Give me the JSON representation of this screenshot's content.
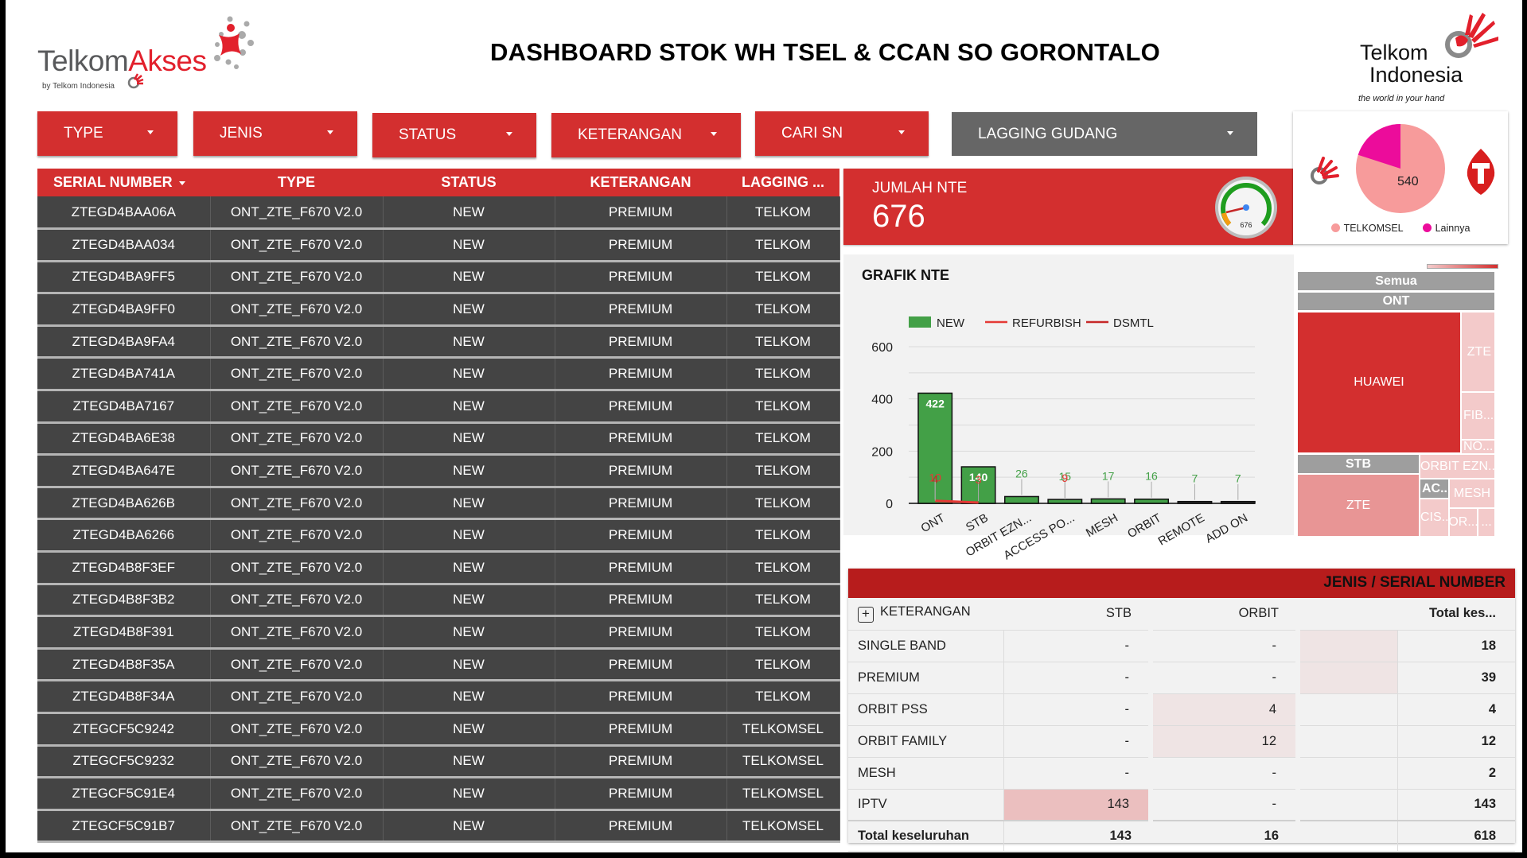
{
  "header": {
    "title": "DASHBOARD STOK WH TSEL & CCAN SO GORONTALO",
    "logo_left": {
      "part1": "Telkom",
      "part2": "Akses",
      "byline": "by Telkom Indonesia"
    },
    "logo_right": {
      "line1": "Telkom",
      "line2": "Indonesia",
      "tagline": "the world in your hand"
    }
  },
  "filters": [
    {
      "label": "TYPE"
    },
    {
      "label": "JENIS"
    },
    {
      "label": "STATUS"
    },
    {
      "label": "KETERANGAN"
    },
    {
      "label": "CARI SN"
    },
    {
      "label": "LAGGING GUDANG"
    }
  ],
  "table": {
    "columns": [
      "SERIAL NUMBER",
      "TYPE",
      "STATUS",
      "KETERANGAN",
      "LAGGING ..."
    ],
    "rows": [
      [
        "ZTEGD4BAA06A",
        "ONT_ZTE_F670 V2.0",
        "NEW",
        "PREMIUM",
        "TELKOM"
      ],
      [
        "ZTEGD4BAA034",
        "ONT_ZTE_F670 V2.0",
        "NEW",
        "PREMIUM",
        "TELKOM"
      ],
      [
        "ZTEGD4BA9FF5",
        "ONT_ZTE_F670 V2.0",
        "NEW",
        "PREMIUM",
        "TELKOM"
      ],
      [
        "ZTEGD4BA9FF0",
        "ONT_ZTE_F670 V2.0",
        "NEW",
        "PREMIUM",
        "TELKOM"
      ],
      [
        "ZTEGD4BA9FA4",
        "ONT_ZTE_F670 V2.0",
        "NEW",
        "PREMIUM",
        "TELKOM"
      ],
      [
        "ZTEGD4BA741A",
        "ONT_ZTE_F670 V2.0",
        "NEW",
        "PREMIUM",
        "TELKOM"
      ],
      [
        "ZTEGD4BA7167",
        "ONT_ZTE_F670 V2.0",
        "NEW",
        "PREMIUM",
        "TELKOM"
      ],
      [
        "ZTEGD4BA6E38",
        "ONT_ZTE_F670 V2.0",
        "NEW",
        "PREMIUM",
        "TELKOM"
      ],
      [
        "ZTEGD4BA647E",
        "ONT_ZTE_F670 V2.0",
        "NEW",
        "PREMIUM",
        "TELKOM"
      ],
      [
        "ZTEGD4BA626B",
        "ONT_ZTE_F670 V2.0",
        "NEW",
        "PREMIUM",
        "TELKOM"
      ],
      [
        "ZTEGD4BA6266",
        "ONT_ZTE_F670 V2.0",
        "NEW",
        "PREMIUM",
        "TELKOM"
      ],
      [
        "ZTEGD4B8F3EF",
        "ONT_ZTE_F670 V2.0",
        "NEW",
        "PREMIUM",
        "TELKOM"
      ],
      [
        "ZTEGD4B8F3B2",
        "ONT_ZTE_F670 V2.0",
        "NEW",
        "PREMIUM",
        "TELKOM"
      ],
      [
        "ZTEGD4B8F391",
        "ONT_ZTE_F670 V2.0",
        "NEW",
        "PREMIUM",
        "TELKOM"
      ],
      [
        "ZTEGD4B8F35A",
        "ONT_ZTE_F670 V2.0",
        "NEW",
        "PREMIUM",
        "TELKOM"
      ],
      [
        "ZTEGD4B8F34A",
        "ONT_ZTE_F670 V2.0",
        "NEW",
        "PREMIUM",
        "TELKOM"
      ],
      [
        "ZTEGCF5C9242",
        "ONT_ZTE_F670 V2.0",
        "NEW",
        "PREMIUM",
        "TELKOMSEL"
      ],
      [
        "ZTEGCF5C9232",
        "ONT_ZTE_F670 V2.0",
        "NEW",
        "PREMIUM",
        "TELKOMSEL"
      ],
      [
        "ZTEGCF5C91E4",
        "ONT_ZTE_F670 V2.0",
        "NEW",
        "PREMIUM",
        "TELKOMSEL"
      ],
      [
        "ZTEGCF5C91B7",
        "ONT_ZTE_F670 V2.0",
        "NEW",
        "PREMIUM",
        "TELKOMSEL"
      ]
    ]
  },
  "kpi": {
    "label": "JUMLAH NTE",
    "value": "676",
    "gauge_value": "676"
  },
  "pie": {
    "center_label": "540",
    "legend": [
      {
        "label": "TELKOMSEL",
        "color": "#f79b9b"
      },
      {
        "label": "Lainnya",
        "color": "#ec0c9b"
      }
    ]
  },
  "chart_data": {
    "type": "bar",
    "title": "GRAFIK NTE",
    "categories": [
      "ONT",
      "STB",
      "ORBIT EZN...",
      "ACCESS PO...",
      "MESH",
      "ORBIT",
      "REMOTE",
      "ADD ON"
    ],
    "series": [
      {
        "name": "NEW",
        "type": "bar",
        "color": "#43a047",
        "values": [
          422,
          140,
          26,
          15,
          17,
          16,
          7,
          7
        ]
      },
      {
        "name": "REFURBISH",
        "type": "line",
        "color": "#e53935",
        "values": [
          10,
          3,
          null,
          9,
          null,
          null,
          null,
          null
        ]
      },
      {
        "name": "DSMTL",
        "type": "line",
        "color": "#c62828",
        "values": [
          4,
          null,
          null,
          null,
          null,
          null,
          null,
          null
        ]
      }
    ],
    "yticks": [
      0,
      200,
      400,
      600
    ],
    "ylim": [
      0,
      600
    ],
    "legend_position": "top",
    "grid": true,
    "xlabel": "",
    "ylabel": ""
  },
  "treemap": {
    "root": "Semua",
    "groups": [
      {
        "label": "ONT",
        "children": [
          "HUAWEI",
          "ZTE",
          "FIB...",
          "NO..."
        ]
      },
      {
        "label": "STB",
        "children": [
          "ZTE"
        ]
      },
      {
        "label": "ORBIT EZN..."
      },
      {
        "label": "AC...",
        "children": [
          "CIS..."
        ]
      },
      {
        "label": "MESH"
      },
      {
        "label": "OR..."
      },
      {
        "label": "..."
      }
    ]
  },
  "pivot": {
    "title": "JENIS / SERIAL NUMBER",
    "columns": [
      "KETERANGAN",
      "STB",
      "ORBIT",
      "",
      "Total kes..."
    ],
    "rows": [
      [
        "SINGLE BAND",
        "-",
        "-",
        "",
        "18"
      ],
      [
        "PREMIUM",
        "-",
        "-",
        "",
        "39"
      ],
      [
        "ORBIT PSS",
        "-",
        "4",
        "",
        "4"
      ],
      [
        "ORBIT FAMILY",
        "-",
        "12",
        "",
        "12"
      ],
      [
        "MESH",
        "-",
        "-",
        "",
        "2"
      ],
      [
        "IPTV",
        "143",
        "-",
        "",
        "143"
      ]
    ],
    "total": [
      "Total keseluruhan",
      "143",
      "16",
      "",
      "618"
    ]
  }
}
